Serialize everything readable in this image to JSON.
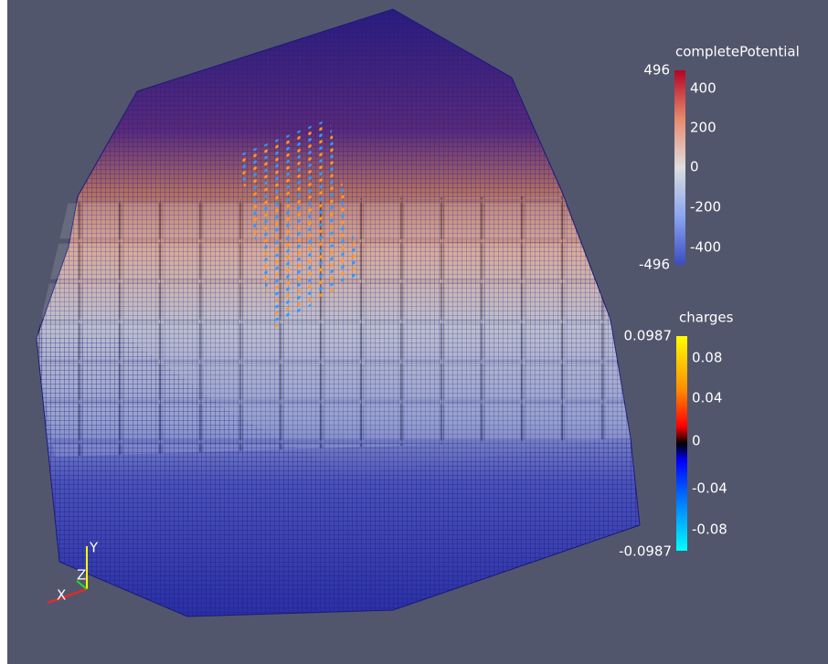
{
  "legends": [
    {
      "title": "completePotential",
      "max_label": "496",
      "min_label": "-496",
      "ticks": [
        "400",
        "200",
        "0",
        "-200",
        "-400"
      ]
    },
    {
      "title": "charges",
      "max_label": "0.0987",
      "min_label": "-0.0987",
      "ticks": [
        "0.08",
        "0.04",
        "0",
        "-0.04",
        "-0.08"
      ]
    }
  ],
  "axes": {
    "x": "X",
    "y": "Y",
    "z": "Z"
  }
}
